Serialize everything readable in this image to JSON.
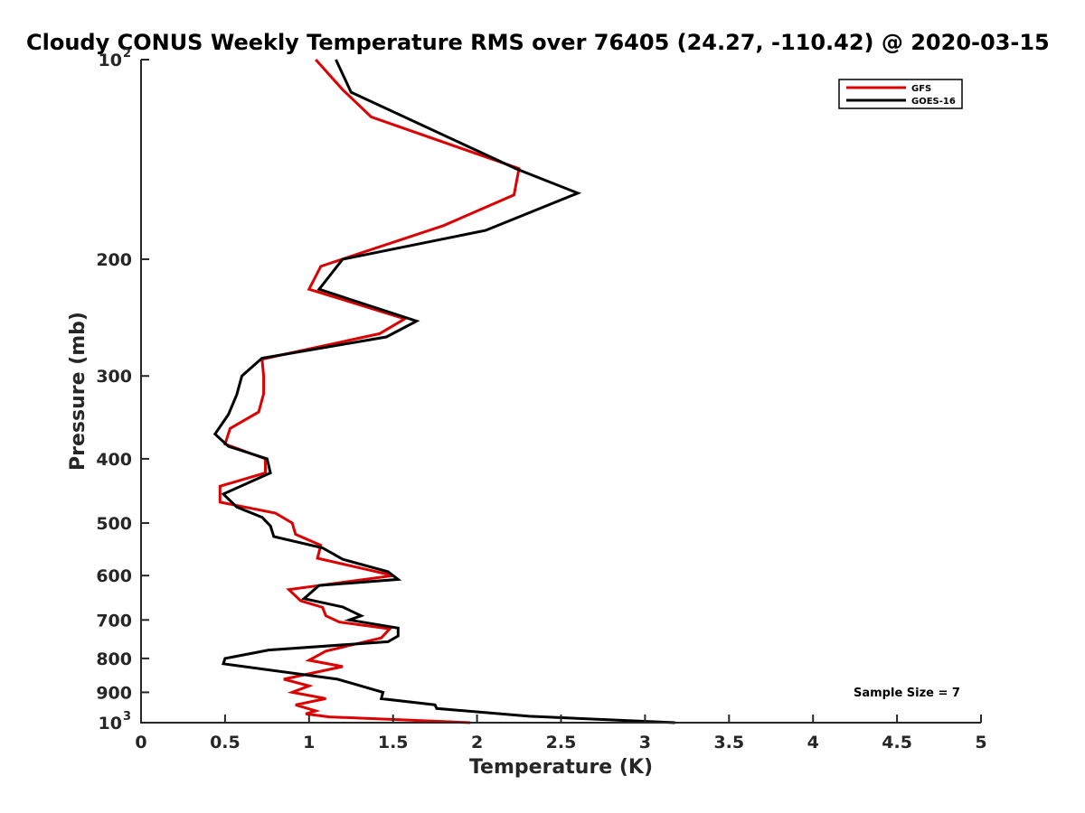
{
  "chart_data": {
    "type": "line",
    "title": "Cloudy CONUS Weekly Temperature RMS over 76405 (24.27, -110.42) @ 2020-03-15",
    "xlabel": "Temperature (K)",
    "ylabel": "Pressure (mb)",
    "xlim": [
      0,
      5
    ],
    "ylim": [
      1000,
      100
    ],
    "yscale": "log",
    "y_reversed": true,
    "grid": false,
    "legend_position": "top-right",
    "x_ticks": [
      "0",
      "0.5",
      "1",
      "1.5",
      "2",
      "2.5",
      "3",
      "3.5",
      "4",
      "4.5",
      "5"
    ],
    "y_ticks": [
      {
        "value": 100,
        "base": "10",
        "exp": "2"
      },
      {
        "value": 200,
        "label": "200"
      },
      {
        "value": 300,
        "label": "300"
      },
      {
        "value": 400,
        "label": "400"
      },
      {
        "value": 500,
        "label": "500"
      },
      {
        "value": 600,
        "label": "600"
      },
      {
        "value": 700,
        "label": "700"
      },
      {
        "value": 800,
        "label": "800"
      },
      {
        "value": 900,
        "label": "900"
      },
      {
        "value": 1000,
        "base": "10",
        "exp": "3"
      }
    ],
    "annotation": "Sample Size = 7",
    "series": [
      {
        "name": "GFS",
        "color": "#dd0000",
        "x": [
          1.04,
          1.2,
          1.37,
          2.25,
          2.22,
          1.8,
          1.07,
          1.0,
          1.57,
          1.42,
          0.72,
          0.73,
          0.73,
          0.7,
          0.53,
          0.5,
          0.74,
          0.74,
          0.47,
          0.47,
          0.8,
          0.9,
          0.92,
          1.07,
          1.05,
          1.35,
          1.5,
          0.88,
          0.95,
          1.08,
          1.1,
          1.18,
          1.48,
          1.43,
          1.1,
          1.0,
          1.2,
          0.85,
          1.0,
          0.9,
          1.1,
          0.92,
          1.04,
          0.98,
          1.12,
          1.96
        ],
        "y": [
          100,
          111,
          122,
          146,
          160,
          178,
          205,
          222,
          246,
          259,
          283,
          300,
          319,
          340,
          360,
          380,
          400,
          420,
          440,
          465,
          483,
          500,
          520,
          540,
          565,
          588,
          600,
          630,
          655,
          670,
          690,
          705,
          722,
          745,
          780,
          805,
          823,
          860,
          880,
          900,
          920,
          940,
          960,
          970,
          980,
          1000
        ]
      },
      {
        "name": "GOES-16",
        "color": "#000000",
        "x": [
          1.16,
          1.25,
          2.23,
          2.6,
          2.05,
          1.2,
          1.06,
          1.64,
          1.46,
          0.72,
          0.6,
          0.57,
          0.52,
          0.44,
          0.52,
          0.75,
          0.77,
          0.49,
          0.57,
          0.72,
          0.77,
          0.79,
          1.08,
          1.2,
          1.47,
          1.53,
          1.06,
          0.97,
          1.2,
          1.31,
          1.24,
          1.53,
          1.53,
          1.47,
          0.76,
          0.5,
          0.49,
          1.17,
          1.44,
          1.43,
          1.75,
          1.76,
          2.31,
          3.18
        ],
        "y": [
          100,
          112,
          146,
          159,
          181,
          200,
          222,
          248,
          262,
          282,
          300,
          320,
          343,
          367,
          383,
          400,
          420,
          452,
          473,
          490,
          505,
          524,
          545,
          567,
          592,
          608,
          621,
          650,
          669,
          690,
          700,
          720,
          740,
          755,
          777,
          800,
          815,
          860,
          900,
          920,
          940,
          952,
          978,
          1000
        ]
      }
    ]
  }
}
